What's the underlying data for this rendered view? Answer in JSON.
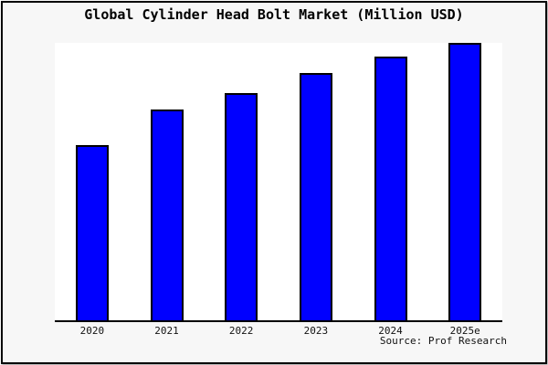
{
  "chart_data": {
    "type": "bar",
    "title": "Global Cylinder Head Bolt Market (Million USD)",
    "categories": [
      "2020",
      "2021",
      "2022",
      "2023",
      "2024",
      "2025e"
    ],
    "values": [
      63,
      76,
      82,
      89,
      95,
      100
    ],
    "ylim": [
      0,
      100
    ],
    "xlabel": "",
    "ylabel": "",
    "grid": false,
    "legend": false,
    "y_axis_visible": false,
    "value_note": "No y-axis scale or data labels shown; values are relative bar heights as percent of the 2025e bar",
    "source": "Source: Prof Research",
    "colors": {
      "bar_fill": "#0000ff",
      "bar_border": "#000000",
      "background": "#f7f7f7",
      "plot_background": "#ffffff",
      "axis": "#000000",
      "text": "#000000"
    }
  }
}
